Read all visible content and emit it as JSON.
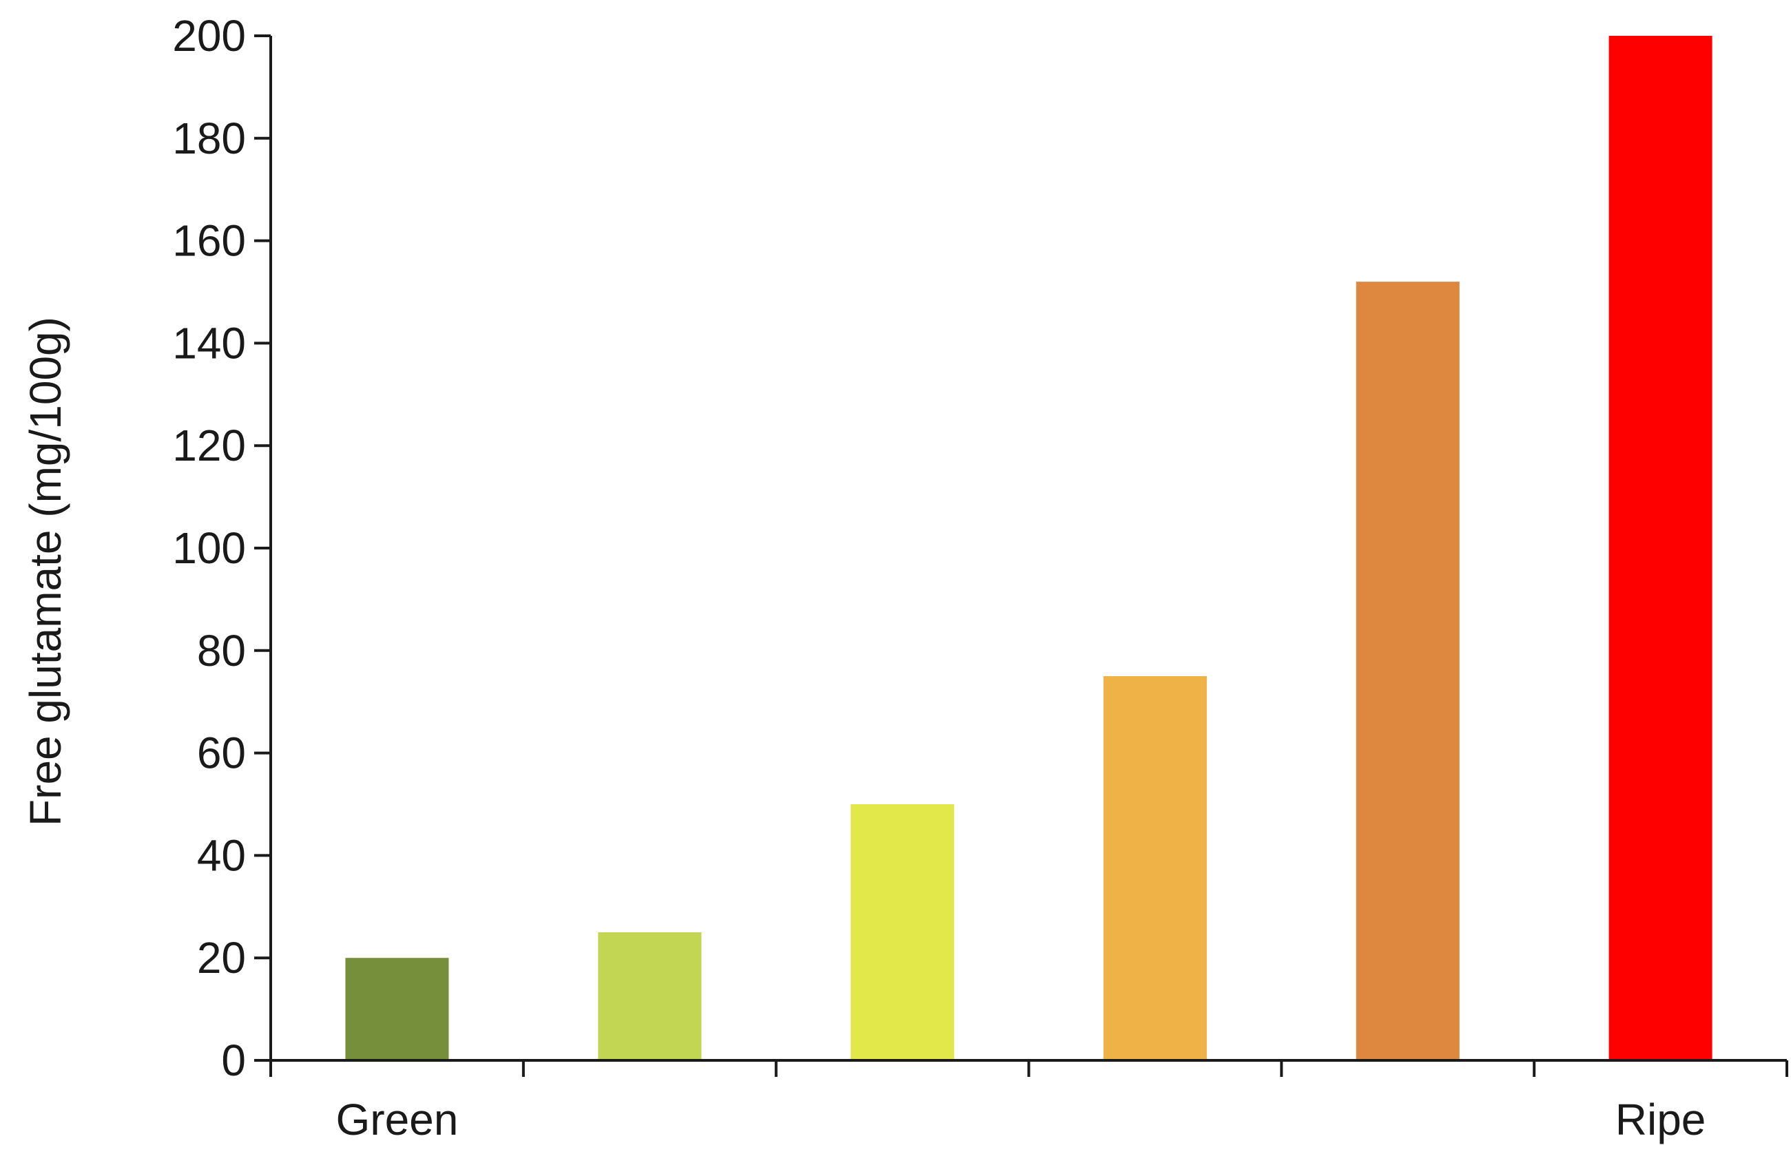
{
  "chart_data": {
    "type": "bar",
    "categories": [
      "Green",
      "",
      "",
      "",
      "",
      "Ripe"
    ],
    "values": [
      20,
      25,
      50,
      75,
      152,
      200
    ],
    "bar_colors": [
      "#768F3A",
      "#C2D654",
      "#E3E84A",
      "#EFB246",
      "#DE873F",
      "#FF0000"
    ],
    "title": "",
    "xlabel": "",
    "ylabel": "Free glutamate  (mg/100g)",
    "ylim": [
      0,
      200
    ],
    "yticks": [
      0,
      20,
      40,
      60,
      80,
      100,
      120,
      140,
      160,
      180,
      200
    ],
    "ytick_labels": [
      "0",
      "20",
      "40",
      "60",
      "80",
      "100",
      "120",
      "140",
      "160",
      "180",
      "200"
    ],
    "grid": false,
    "legend": "none"
  }
}
